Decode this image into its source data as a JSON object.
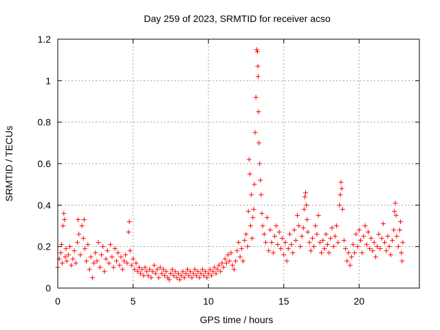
{
  "chart_data": {
    "type": "scatter",
    "title": "Day 259 of 2023, SRMTID for receiver acso",
    "xlabel": "GPS time / hours",
    "ylabel": "SRMTID / TECUs",
    "xlim": [
      0,
      24
    ],
    "ylim": [
      0,
      1.2
    ],
    "x_ticks": [
      0,
      5,
      10,
      15,
      20
    ],
    "x_tick_labels": [
      "0",
      "5",
      "10",
      "15",
      "20"
    ],
    "y_ticks": [
      0,
      0.2,
      0.4,
      0.6,
      0.8,
      1.0,
      1.2
    ],
    "y_tick_labels": [
      "0",
      "0.2",
      "0.4",
      "0.6",
      "0.8",
      "1",
      "1.2"
    ],
    "grid": true,
    "marker": "plus",
    "color": "#ff0000",
    "series": [
      {
        "name": "SRMTID",
        "points": [
          [
            0.0,
            0.1
          ],
          [
            0.1,
            0.14
          ],
          [
            0.2,
            0.17
          ],
          [
            0.25,
            0.21
          ],
          [
            0.3,
            0.12
          ],
          [
            0.35,
            0.3
          ],
          [
            0.4,
            0.36
          ],
          [
            0.45,
            0.33
          ],
          [
            0.5,
            0.15
          ],
          [
            0.55,
            0.19
          ],
          [
            0.6,
            0.13
          ],
          [
            0.7,
            0.16
          ],
          [
            0.8,
            0.2
          ],
          [
            0.9,
            0.11
          ],
          [
            1.0,
            0.14
          ],
          [
            1.1,
            0.18
          ],
          [
            1.2,
            0.12
          ],
          [
            1.3,
            0.22
          ],
          [
            1.35,
            0.33
          ],
          [
            1.4,
            0.26
          ],
          [
            1.5,
            0.16
          ],
          [
            1.6,
            0.3
          ],
          [
            1.7,
            0.24
          ],
          [
            1.75,
            0.33
          ],
          [
            1.8,
            0.19
          ],
          [
            1.9,
            0.13
          ],
          [
            2.0,
            0.21
          ],
          [
            2.1,
            0.09
          ],
          [
            2.2,
            0.15
          ],
          [
            2.3,
            0.05
          ],
          [
            2.4,
            0.12
          ],
          [
            2.5,
            0.17
          ],
          [
            2.6,
            0.13
          ],
          [
            2.7,
            0.22
          ],
          [
            2.8,
            0.1
          ],
          [
            2.9,
            0.16
          ],
          [
            3.0,
            0.2
          ],
          [
            3.1,
            0.08
          ],
          [
            3.2,
            0.14
          ],
          [
            3.3,
            0.18
          ],
          [
            3.4,
            0.12
          ],
          [
            3.5,
            0.21
          ],
          [
            3.6,
            0.15
          ],
          [
            3.7,
            0.1
          ],
          [
            3.8,
            0.19
          ],
          [
            3.9,
            0.13
          ],
          [
            4.0,
            0.17
          ],
          [
            4.1,
            0.11
          ],
          [
            4.2,
            0.15
          ],
          [
            4.3,
            0.09
          ],
          [
            4.4,
            0.13
          ],
          [
            4.5,
            0.16
          ],
          [
            4.6,
            0.12
          ],
          [
            4.7,
            0.27
          ],
          [
            4.75,
            0.32
          ],
          [
            4.8,
            0.18
          ],
          [
            4.9,
            0.11
          ],
          [
            5.0,
            0.14
          ],
          [
            5.1,
            0.09
          ],
          [
            5.2,
            0.12
          ],
          [
            5.3,
            0.08
          ],
          [
            5.4,
            0.1
          ],
          [
            5.5,
            0.07
          ],
          [
            5.6,
            0.09
          ],
          [
            5.7,
            0.06
          ],
          [
            5.8,
            0.1
          ],
          [
            5.9,
            0.08
          ],
          [
            6.0,
            0.06
          ],
          [
            6.1,
            0.09
          ],
          [
            6.2,
            0.05
          ],
          [
            6.3,
            0.08
          ],
          [
            6.4,
            0.11
          ],
          [
            6.5,
            0.07
          ],
          [
            6.6,
            0.09
          ],
          [
            6.7,
            0.05
          ],
          [
            6.8,
            0.1
          ],
          [
            6.9,
            0.07
          ],
          [
            7.0,
            0.09
          ],
          [
            7.1,
            0.06
          ],
          [
            7.2,
            0.08
          ],
          [
            7.3,
            0.05
          ],
          [
            7.4,
            0.04
          ],
          [
            7.5,
            0.07
          ],
          [
            7.6,
            0.09
          ],
          [
            7.7,
            0.06
          ],
          [
            7.8,
            0.08
          ],
          [
            7.9,
            0.05
          ],
          [
            8.0,
            0.07
          ],
          [
            8.1,
            0.04
          ],
          [
            8.2,
            0.06
          ],
          [
            8.3,
            0.08
          ],
          [
            8.4,
            0.05
          ],
          [
            8.5,
            0.07
          ],
          [
            8.6,
            0.09
          ],
          [
            8.7,
            0.06
          ],
          [
            8.8,
            0.08
          ],
          [
            8.9,
            0.05
          ],
          [
            9.0,
            0.07
          ],
          [
            9.1,
            0.09
          ],
          [
            9.2,
            0.06
          ],
          [
            9.3,
            0.08
          ],
          [
            9.4,
            0.05
          ],
          [
            9.5,
            0.07
          ],
          [
            9.6,
            0.09
          ],
          [
            9.7,
            0.06
          ],
          [
            9.8,
            0.08
          ],
          [
            9.9,
            0.05
          ],
          [
            10.0,
            0.07
          ],
          [
            10.1,
            0.09
          ],
          [
            10.2,
            0.06
          ],
          [
            10.3,
            0.08
          ],
          [
            10.4,
            0.1
          ],
          [
            10.5,
            0.07
          ],
          [
            10.6,
            0.09
          ],
          [
            10.7,
            0.11
          ],
          [
            10.8,
            0.08
          ],
          [
            10.9,
            0.12
          ],
          [
            11.0,
            0.1
          ],
          [
            11.1,
            0.14
          ],
          [
            11.2,
            0.12
          ],
          [
            11.3,
            0.16
          ],
          [
            11.4,
            0.13
          ],
          [
            11.5,
            0.17
          ],
          [
            11.6,
            0.11
          ],
          [
            11.7,
            0.09
          ],
          [
            11.8,
            0.13
          ],
          [
            11.9,
            0.18
          ],
          [
            12.0,
            0.22
          ],
          [
            12.1,
            0.15
          ],
          [
            12.2,
            0.19
          ],
          [
            12.3,
            0.13
          ],
          [
            12.4,
            0.23
          ],
          [
            12.5,
            0.26
          ],
          [
            12.6,
            0.2
          ],
          [
            12.65,
            0.37
          ],
          [
            12.7,
            0.62
          ],
          [
            12.75,
            0.55
          ],
          [
            12.8,
            0.3
          ],
          [
            12.85,
            0.45
          ],
          [
            12.9,
            0.24
          ],
          [
            12.95,
            0.34
          ],
          [
            13.0,
            0.38
          ],
          [
            13.05,
            0.5
          ],
          [
            13.1,
            0.75
          ],
          [
            13.15,
            0.92
          ],
          [
            13.2,
            1.15
          ],
          [
            13.25,
            1.14
          ],
          [
            13.28,
            1.07
          ],
          [
            13.3,
            1.02
          ],
          [
            13.32,
            0.85
          ],
          [
            13.35,
            0.7
          ],
          [
            13.4,
            0.6
          ],
          [
            13.45,
            0.52
          ],
          [
            13.5,
            0.45
          ],
          [
            13.55,
            0.36
          ],
          [
            13.6,
            0.3
          ],
          [
            13.7,
            0.26
          ],
          [
            13.8,
            0.22
          ],
          [
            13.9,
            0.34
          ],
          [
            14.0,
            0.18
          ],
          [
            14.1,
            0.28
          ],
          [
            14.2,
            0.22
          ],
          [
            14.3,
            0.17
          ],
          [
            14.4,
            0.25
          ],
          [
            14.5,
            0.3
          ],
          [
            14.6,
            0.21
          ],
          [
            14.7,
            0.27
          ],
          [
            14.8,
            0.19
          ],
          [
            14.9,
            0.24
          ],
          [
            15.0,
            0.16
          ],
          [
            15.1,
            0.22
          ],
          [
            15.2,
            0.13
          ],
          [
            15.3,
            0.19
          ],
          [
            15.4,
            0.26
          ],
          [
            15.5,
            0.21
          ],
          [
            15.6,
            0.17
          ],
          [
            15.7,
            0.28
          ],
          [
            15.8,
            0.23
          ],
          [
            15.9,
            0.35
          ],
          [
            16.0,
            0.3
          ],
          [
            16.1,
            0.2
          ],
          [
            16.2,
            0.25
          ],
          [
            16.3,
            0.29
          ],
          [
            16.35,
            0.38
          ],
          [
            16.4,
            0.44
          ],
          [
            16.45,
            0.46
          ],
          [
            16.5,
            0.4
          ],
          [
            16.55,
            0.33
          ],
          [
            16.6,
            0.27
          ],
          [
            16.7,
            0.22
          ],
          [
            16.8,
            0.18
          ],
          [
            16.9,
            0.24
          ],
          [
            17.0,
            0.2
          ],
          [
            17.1,
            0.3
          ],
          [
            17.2,
            0.26
          ],
          [
            17.3,
            0.35
          ],
          [
            17.4,
            0.22
          ],
          [
            17.5,
            0.17
          ],
          [
            17.6,
            0.23
          ],
          [
            17.7,
            0.19
          ],
          [
            17.8,
            0.26
          ],
          [
            17.9,
            0.21
          ],
          [
            18.0,
            0.17
          ],
          [
            18.1,
            0.24
          ],
          [
            18.2,
            0.29
          ],
          [
            18.3,
            0.2
          ],
          [
            18.4,
            0.25
          ],
          [
            18.5,
            0.3
          ],
          [
            18.6,
            0.22
          ],
          [
            18.7,
            0.4
          ],
          [
            18.75,
            0.45
          ],
          [
            18.8,
            0.51
          ],
          [
            18.85,
            0.48
          ],
          [
            18.9,
            0.38
          ],
          [
            19.0,
            0.23
          ],
          [
            19.1,
            0.19
          ],
          [
            19.2,
            0.13
          ],
          [
            19.3,
            0.17
          ],
          [
            19.4,
            0.11
          ],
          [
            19.5,
            0.15
          ],
          [
            19.6,
            0.21
          ],
          [
            19.7,
            0.17
          ],
          [
            19.8,
            0.26
          ],
          [
            19.9,
            0.2
          ],
          [
            20.0,
            0.28
          ],
          [
            20.1,
            0.23
          ],
          [
            20.2,
            0.17
          ],
          [
            20.3,
            0.25
          ],
          [
            20.4,
            0.3
          ],
          [
            20.5,
            0.21
          ],
          [
            20.6,
            0.27
          ],
          [
            20.7,
            0.19
          ],
          [
            20.8,
            0.24
          ],
          [
            20.9,
            0.18
          ],
          [
            21.0,
            0.22
          ],
          [
            21.1,
            0.15
          ],
          [
            21.2,
            0.2
          ],
          [
            21.3,
            0.26
          ],
          [
            21.4,
            0.19
          ],
          [
            21.5,
            0.24
          ],
          [
            21.6,
            0.31
          ],
          [
            21.7,
            0.22
          ],
          [
            21.8,
            0.18
          ],
          [
            21.9,
            0.25
          ],
          [
            22.0,
            0.2
          ],
          [
            22.1,
            0.16
          ],
          [
            22.2,
            0.23
          ],
          [
            22.3,
            0.28
          ],
          [
            22.35,
            0.37
          ],
          [
            22.4,
            0.41
          ],
          [
            22.45,
            0.35
          ],
          [
            22.5,
            0.25
          ],
          [
            22.6,
            0.2
          ],
          [
            22.7,
            0.28
          ],
          [
            22.75,
            0.32
          ],
          [
            22.8,
            0.17
          ],
          [
            22.85,
            0.13
          ],
          [
            22.9,
            0.22
          ]
        ]
      }
    ]
  }
}
